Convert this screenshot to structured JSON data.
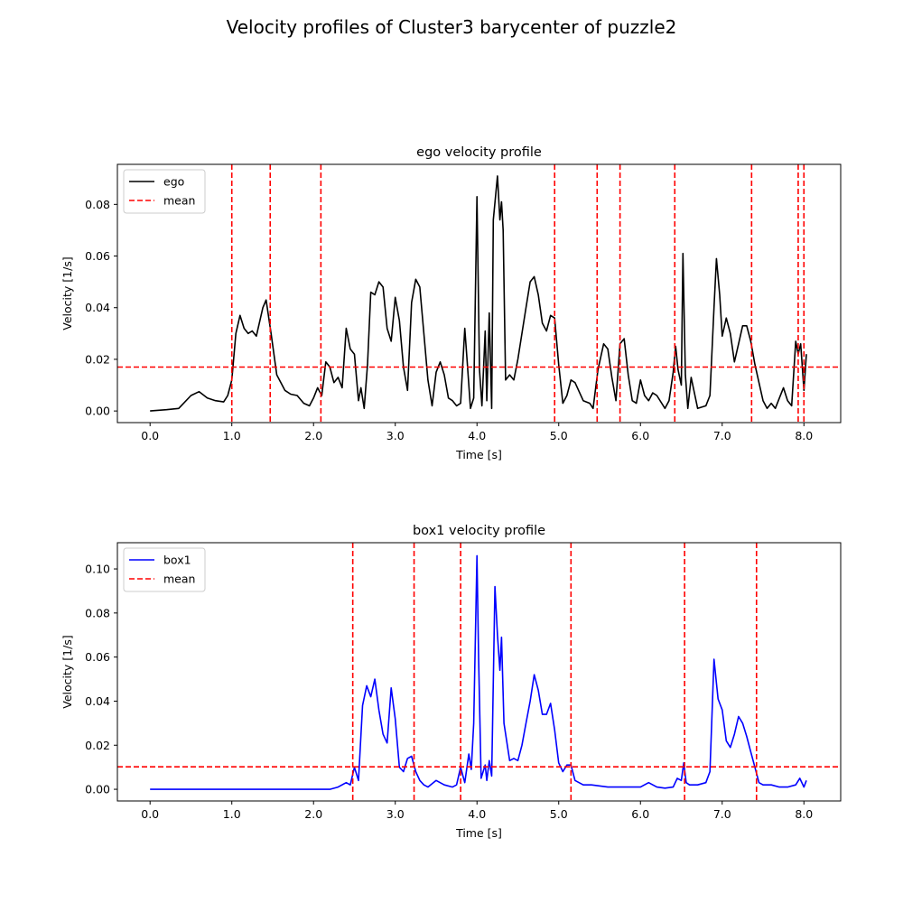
{
  "figure": {
    "suptitle": "Velocity profiles of  Cluster3 barycenter of puzzle2"
  },
  "chart_data": [
    {
      "type": "line",
      "title": "ego velocity profile",
      "xlabel": "Time [s]",
      "ylabel": "Velocity [1/s]",
      "xlim": [
        -0.4,
        8.45
      ],
      "ylim": [
        -0.0045,
        0.0955
      ],
      "xticks": [
        0,
        1,
        2,
        3,
        4,
        5,
        6,
        7,
        8
      ],
      "xtick_labels": [
        "0.0",
        "1.0",
        "2.0",
        "3.0",
        "4.0",
        "5.0",
        "6.0",
        "7.0",
        "8.0"
      ],
      "yticks": [
        0,
        0.02,
        0.04,
        0.06,
        0.08
      ],
      "ytick_labels": [
        "0.00",
        "0.02",
        "0.04",
        "0.06",
        "0.08"
      ],
      "grid": false,
      "legend_position": "top-left",
      "series": [
        {
          "name": "ego",
          "color": "#000000",
          "style": "solid",
          "x": [
            0.0,
            0.2,
            0.35,
            0.5,
            0.6,
            0.7,
            0.8,
            0.9,
            0.95,
            1.0,
            1.05,
            1.1,
            1.15,
            1.2,
            1.25,
            1.3,
            1.38,
            1.42,
            1.48,
            1.55,
            1.65,
            1.72,
            1.8,
            1.88,
            1.95,
            2.0,
            2.05,
            2.1,
            2.15,
            2.2,
            2.25,
            2.3,
            2.35,
            2.4,
            2.45,
            2.5,
            2.55,
            2.58,
            2.62,
            2.66,
            2.7,
            2.75,
            2.8,
            2.85,
            2.9,
            2.95,
            3.0,
            3.05,
            3.1,
            3.15,
            3.2,
            3.25,
            3.3,
            3.35,
            3.4,
            3.45,
            3.5,
            3.55,
            3.6,
            3.65,
            3.7,
            3.75,
            3.8,
            3.85,
            3.88,
            3.92,
            3.96,
            4.0,
            4.03,
            4.06,
            4.1,
            4.12,
            4.15,
            4.18,
            4.2,
            4.25,
            4.28,
            4.3,
            4.32,
            4.35,
            4.4,
            4.45,
            4.5,
            4.55,
            4.6,
            4.65,
            4.7,
            4.75,
            4.8,
            4.85,
            4.9,
            4.95,
            5.0,
            5.05,
            5.1,
            5.15,
            5.2,
            5.3,
            5.38,
            5.42,
            5.48,
            5.55,
            5.6,
            5.65,
            5.7,
            5.75,
            5.8,
            5.85,
            5.9,
            5.95,
            6.0,
            6.05,
            6.1,
            6.15,
            6.2,
            6.3,
            6.35,
            6.4,
            6.43,
            6.46,
            6.5,
            6.52,
            6.55,
            6.58,
            6.62,
            6.7,
            6.8,
            6.85,
            6.9,
            6.93,
            6.97,
            7.0,
            7.05,
            7.1,
            7.15,
            7.2,
            7.25,
            7.3,
            7.35,
            7.4,
            7.45,
            7.5,
            7.55,
            7.6,
            7.65,
            7.7,
            7.75,
            7.8,
            7.85,
            7.9,
            7.93,
            7.96,
            8.0,
            8.03
          ],
          "y": [
            0.0,
            0.0005,
            0.001,
            0.006,
            0.0075,
            0.005,
            0.004,
            0.0035,
            0.006,
            0.012,
            0.03,
            0.037,
            0.032,
            0.03,
            0.031,
            0.029,
            0.04,
            0.043,
            0.03,
            0.014,
            0.008,
            0.0065,
            0.006,
            0.003,
            0.002,
            0.005,
            0.009,
            0.006,
            0.019,
            0.017,
            0.011,
            0.013,
            0.009,
            0.032,
            0.024,
            0.022,
            0.004,
            0.009,
            0.001,
            0.018,
            0.046,
            0.045,
            0.05,
            0.048,
            0.032,
            0.027,
            0.044,
            0.035,
            0.017,
            0.008,
            0.042,
            0.051,
            0.048,
            0.03,
            0.012,
            0.002,
            0.015,
            0.019,
            0.014,
            0.005,
            0.004,
            0.002,
            0.003,
            0.032,
            0.019,
            0.001,
            0.005,
            0.083,
            0.016,
            0.002,
            0.031,
            0.004,
            0.038,
            0.001,
            0.074,
            0.091,
            0.074,
            0.081,
            0.07,
            0.012,
            0.014,
            0.012,
            0.02,
            0.03,
            0.04,
            0.05,
            0.052,
            0.045,
            0.034,
            0.031,
            0.037,
            0.036,
            0.018,
            0.003,
            0.006,
            0.012,
            0.011,
            0.004,
            0.003,
            0.001,
            0.016,
            0.026,
            0.024,
            0.013,
            0.004,
            0.026,
            0.028,
            0.014,
            0.004,
            0.003,
            0.012,
            0.006,
            0.004,
            0.007,
            0.006,
            0.001,
            0.004,
            0.015,
            0.025,
            0.016,
            0.01,
            0.061,
            0.014,
            0.001,
            0.013,
            0.001,
            0.002,
            0.006,
            0.04,
            0.059,
            0.045,
            0.029,
            0.036,
            0.03,
            0.019,
            0.026,
            0.033,
            0.033,
            0.027,
            0.018,
            0.011,
            0.004,
            0.001,
            0.003,
            0.001,
            0.005,
            0.009,
            0.004,
            0.002,
            0.027,
            0.022,
            0.026,
            0.008,
            0.022
          ]
        },
        {
          "name": "mean",
          "color": "#ff0000",
          "style": "dashed",
          "mean_value": 0.017,
          "vlines": [
            1.0,
            1.47,
            2.09,
            4.95,
            5.47,
            5.75,
            6.42,
            7.36,
            7.93,
            8.0
          ]
        }
      ]
    },
    {
      "type": "line",
      "title": "box1 velocity profile",
      "xlabel": "Time [s]",
      "ylabel": "Velocity [1/s]",
      "xlim": [
        -0.4,
        8.45
      ],
      "ylim": [
        -0.0053,
        0.1119
      ],
      "xticks": [
        0,
        1,
        2,
        3,
        4,
        5,
        6,
        7,
        8
      ],
      "xtick_labels": [
        "0.0",
        "1.0",
        "2.0",
        "3.0",
        "4.0",
        "5.0",
        "6.0",
        "7.0",
        "8.0"
      ],
      "yticks": [
        0,
        0.02,
        0.04,
        0.06,
        0.08,
        0.1
      ],
      "ytick_labels": [
        "0.00",
        "0.02",
        "0.04",
        "0.06",
        "0.08",
        "0.10"
      ],
      "grid": false,
      "legend_position": "top-left",
      "series": [
        {
          "name": "box1",
          "color": "#0000ff",
          "style": "solid",
          "x": [
            0.0,
            2.2,
            2.3,
            2.4,
            2.45,
            2.5,
            2.55,
            2.6,
            2.65,
            2.7,
            2.75,
            2.8,
            2.85,
            2.9,
            2.95,
            3.0,
            3.05,
            3.1,
            3.15,
            3.2,
            3.25,
            3.3,
            3.35,
            3.4,
            3.5,
            3.6,
            3.7,
            3.75,
            3.8,
            3.85,
            3.9,
            3.93,
            3.96,
            4.0,
            4.02,
            4.05,
            4.1,
            4.12,
            4.15,
            4.18,
            4.22,
            4.25,
            4.28,
            4.3,
            4.33,
            4.4,
            4.45,
            4.5,
            4.55,
            4.6,
            4.65,
            4.7,
            4.75,
            4.8,
            4.85,
            4.9,
            4.95,
            5.0,
            5.05,
            5.1,
            5.15,
            5.2,
            5.3,
            5.4,
            5.6,
            5.8,
            6.0,
            6.1,
            6.2,
            6.3,
            6.4,
            6.45,
            6.5,
            6.53,
            6.56,
            6.6,
            6.7,
            6.8,
            6.85,
            6.9,
            6.95,
            7.0,
            7.05,
            7.1,
            7.15,
            7.2,
            7.25,
            7.3,
            7.35,
            7.4,
            7.45,
            7.5,
            7.6,
            7.7,
            7.8,
            7.9,
            7.95,
            8.0,
            8.03
          ],
          "y": [
            0.0,
            0.0,
            0.001,
            0.003,
            0.002,
            0.01,
            0.004,
            0.038,
            0.047,
            0.042,
            0.05,
            0.036,
            0.025,
            0.021,
            0.046,
            0.032,
            0.01,
            0.008,
            0.014,
            0.015,
            0.008,
            0.004,
            0.002,
            0.001,
            0.004,
            0.002,
            0.001,
            0.002,
            0.01,
            0.003,
            0.016,
            0.009,
            0.03,
            0.106,
            0.06,
            0.005,
            0.011,
            0.004,
            0.013,
            0.006,
            0.092,
            0.07,
            0.054,
            0.069,
            0.03,
            0.013,
            0.014,
            0.013,
            0.02,
            0.03,
            0.04,
            0.052,
            0.045,
            0.034,
            0.034,
            0.039,
            0.027,
            0.012,
            0.008,
            0.011,
            0.011,
            0.004,
            0.002,
            0.002,
            0.001,
            0.001,
            0.001,
            0.003,
            0.001,
            0.0005,
            0.001,
            0.005,
            0.004,
            0.012,
            0.003,
            0.002,
            0.002,
            0.003,
            0.008,
            0.059,
            0.041,
            0.036,
            0.022,
            0.019,
            0.025,
            0.033,
            0.03,
            0.024,
            0.017,
            0.01,
            0.003,
            0.002,
            0.002,
            0.001,
            0.001,
            0.002,
            0.005,
            0.001,
            0.004
          ]
        },
        {
          "name": "mean",
          "color": "#ff0000",
          "style": "dashed",
          "mean_value": 0.0102,
          "vlines": [
            2.48,
            3.23,
            3.8,
            5.15,
            6.54,
            7.42
          ]
        }
      ]
    }
  ]
}
